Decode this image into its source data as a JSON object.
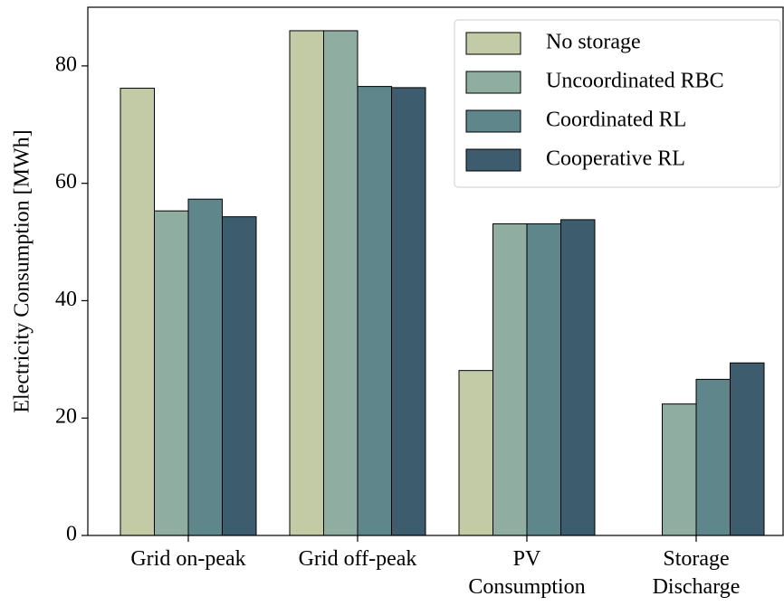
{
  "chart_data": {
    "type": "bar",
    "categories": [
      "Grid on-peak",
      "Grid off-peak",
      "PV\nConsumption",
      "Storage\nDischarge"
    ],
    "series": [
      {
        "name": "No storage",
        "color": "#c2cba6",
        "values": [
          76.2,
          86,
          28.1,
          0
        ]
      },
      {
        "name": "Uncoordinated RBC",
        "color": "#8fada0",
        "values": [
          55.3,
          86,
          53.1,
          22.4
        ]
      },
      {
        "name": "Coordinated RL",
        "color": "#5f868b",
        "values": [
          57.3,
          76.5,
          53.1,
          26.6
        ]
      },
      {
        "name": "Cooperative RL",
        "color": "#3d5c6d",
        "values": [
          54.3,
          76.3,
          53.8,
          29.4
        ]
      }
    ],
    "y_label": "Electricity Consumption [MWh]",
    "ylim": [
      0,
      90
    ],
    "yticks": [
      0,
      20,
      40,
      60,
      80
    ],
    "legend": "upper right"
  }
}
